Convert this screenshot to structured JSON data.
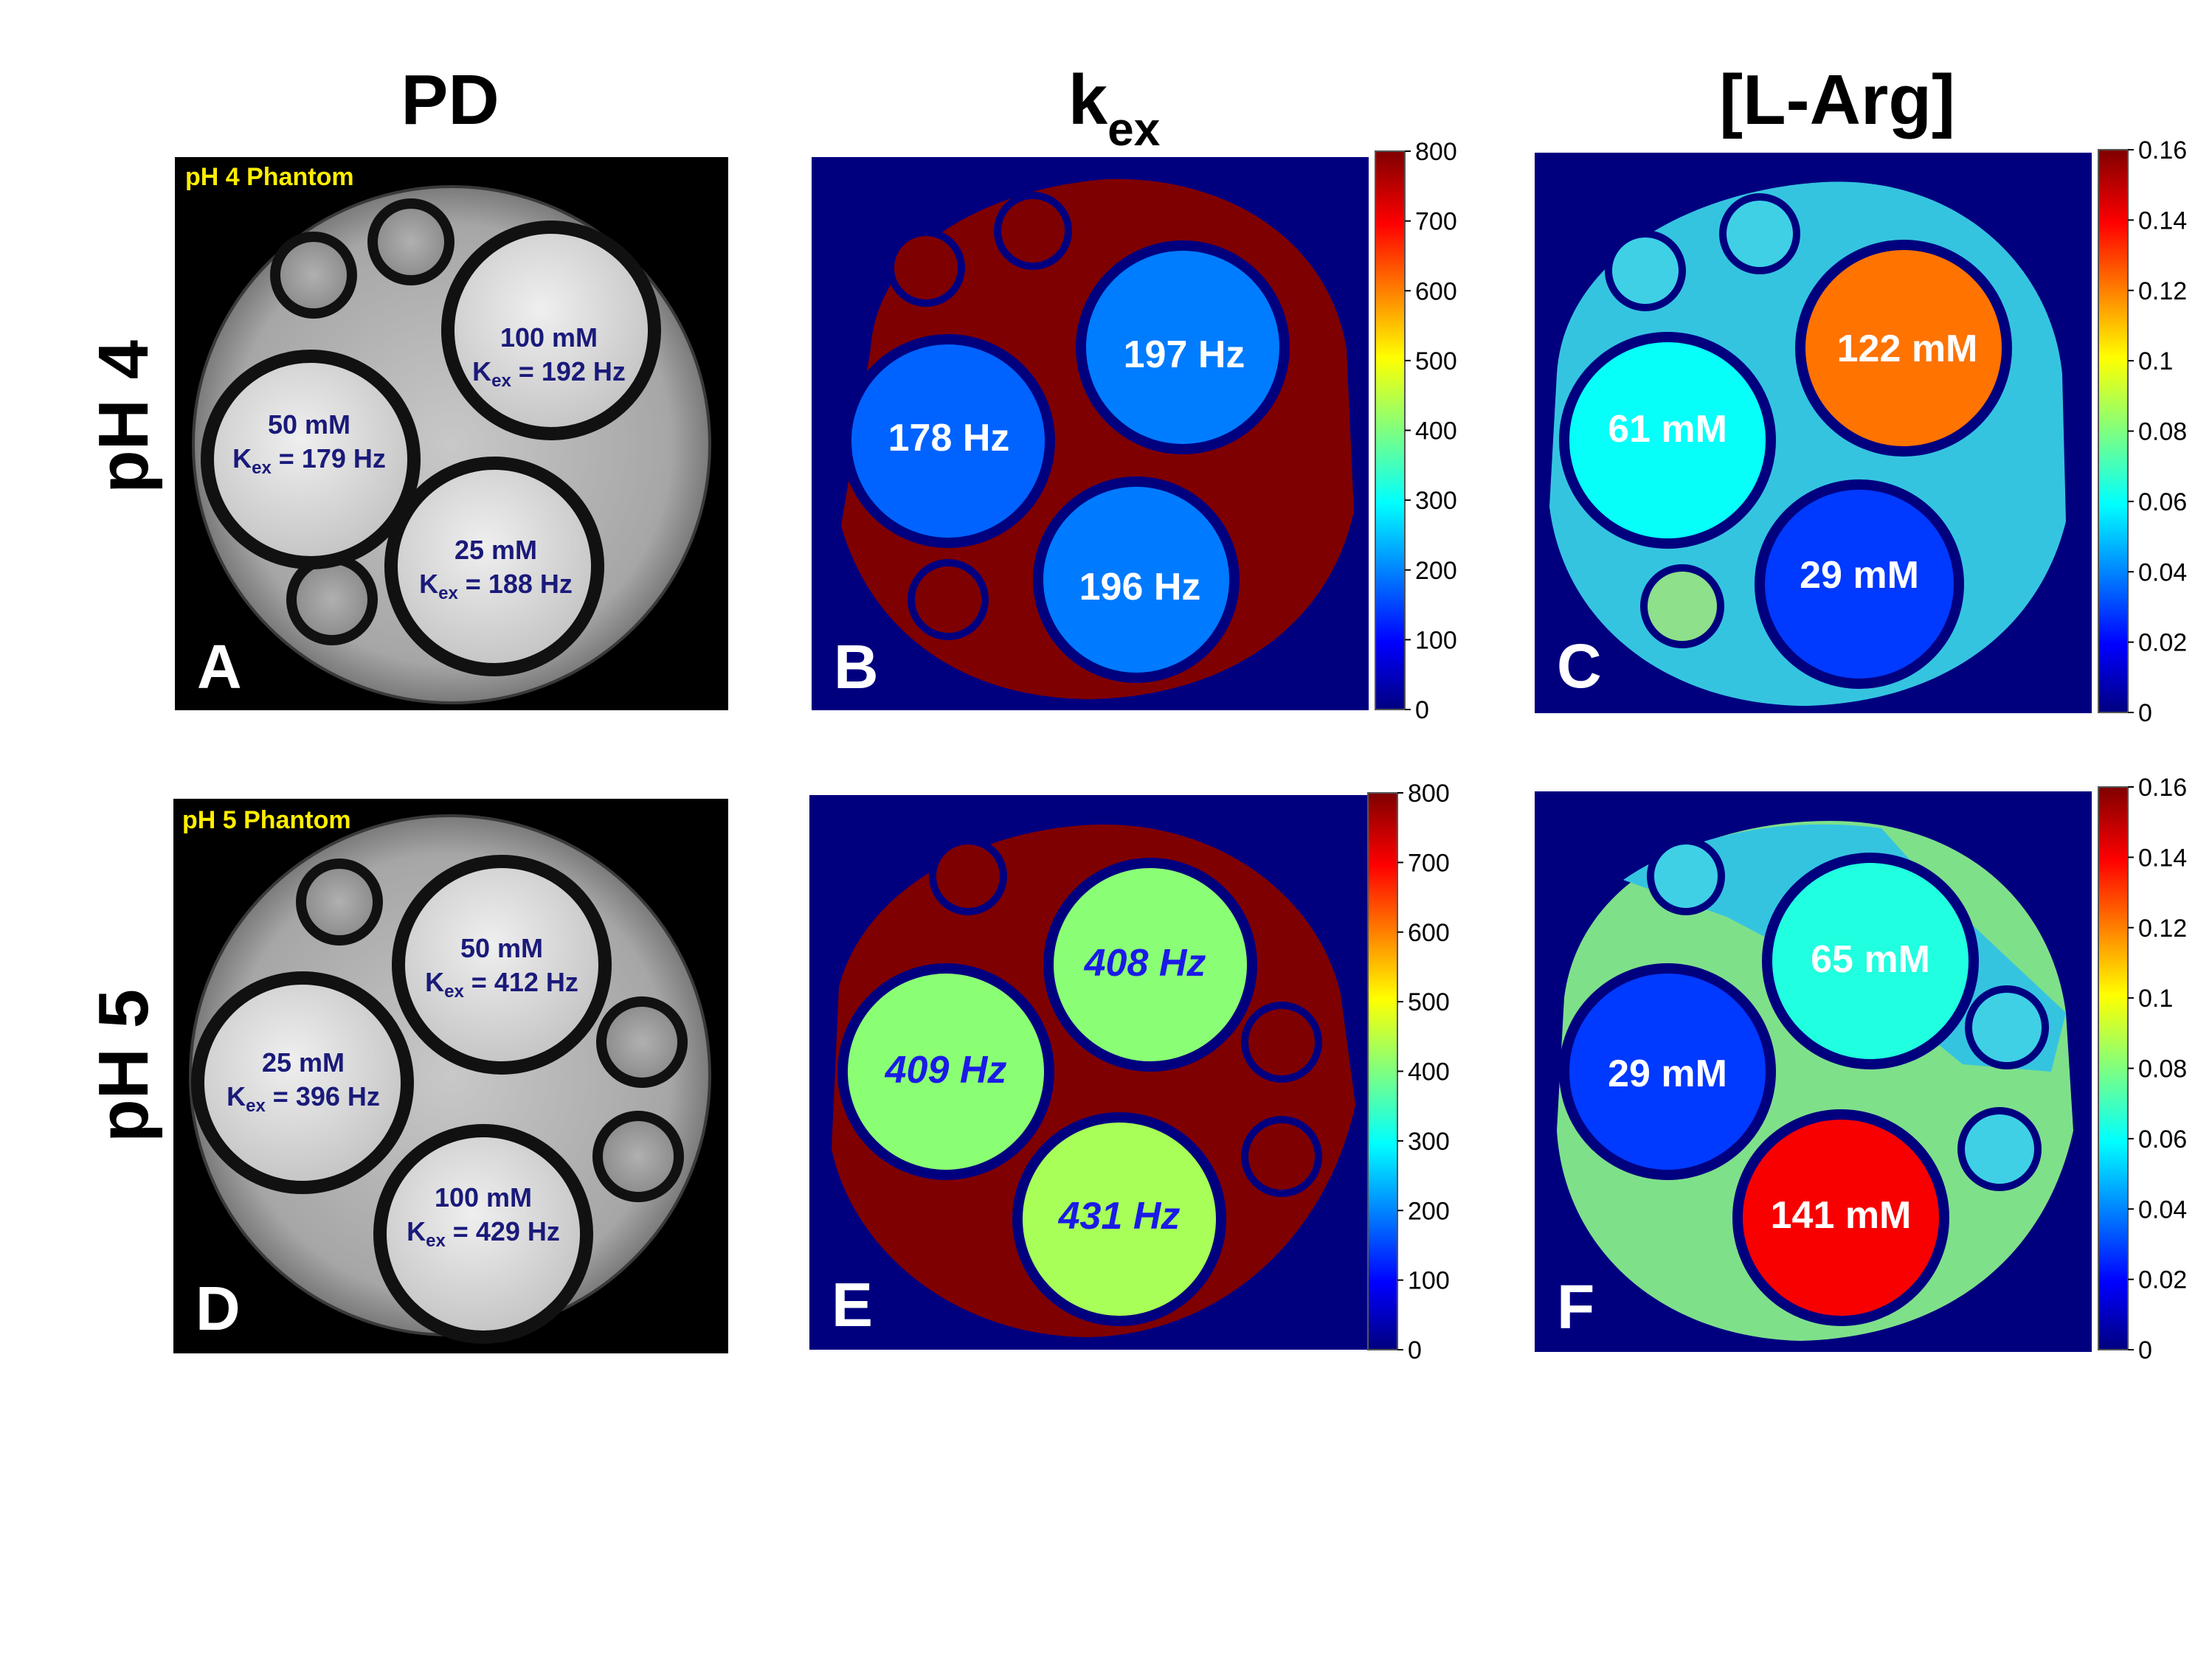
{
  "columns": {
    "pd": "PD",
    "kex_main": "k",
    "kex_sub": "ex",
    "larg": "[L-Arg]"
  },
  "rows": {
    "ph4": "pH 4",
    "ph5": "pH 5"
  },
  "panels": {
    "A": {
      "letter": "A",
      "phantom_label": "pH 4 Phantom",
      "tubes": [
        {
          "conc": "100 mM",
          "k": "K",
          "k_sub": "ex",
          "k_val": " = 192 Hz"
        },
        {
          "conc": "50 mM",
          "k": "K",
          "k_sub": "ex",
          "k_val": " = 179 Hz"
        },
        {
          "conc": "25 mM",
          "k": "K",
          "k_sub": "ex",
          "k_val": " = 188 Hz"
        }
      ]
    },
    "B": {
      "letter": "B",
      "labels": [
        "197 Hz",
        "178 Hz",
        "196 Hz"
      ]
    },
    "C": {
      "letter": "C",
      "labels": [
        "122 mM",
        "61 mM",
        "29 mM"
      ]
    },
    "D": {
      "letter": "D",
      "phantom_label": "pH 5 Phantom",
      "tubes": [
        {
          "conc": "50 mM",
          "k": "K",
          "k_sub": "ex",
          "k_val": " = 412 Hz"
        },
        {
          "conc": "25 mM",
          "k": "K",
          "k_sub": "ex",
          "k_val": " = 396 Hz"
        },
        {
          "conc": "100 mM",
          "k": "K",
          "k_sub": "ex",
          "k_val": " = 429 Hz"
        }
      ]
    },
    "E": {
      "letter": "E",
      "labels": [
        "408 Hz",
        "409 Hz",
        "431 Hz"
      ]
    },
    "F": {
      "letter": "F",
      "labels": [
        "65 mM",
        "29 mM",
        "141 mM"
      ]
    }
  },
  "colorbars": {
    "kex": {
      "ticks": [
        "800",
        "700",
        "600",
        "500",
        "400",
        "300",
        "200",
        "100",
        "0"
      ],
      "min": 0,
      "max": 800
    },
    "larg": {
      "ticks": [
        "0.16",
        "0.14",
        "0.12",
        "0.1",
        "0.08",
        "0.06",
        "0.04",
        "0.02",
        "0"
      ],
      "min": 0,
      "max": 0.16
    }
  },
  "values": {
    "B": [
      197,
      178,
      196
    ],
    "C": [
      0.122,
      0.061,
      0.029
    ],
    "E": [
      408,
      409,
      431
    ],
    "F": [
      0.065,
      0.029,
      0.141
    ]
  },
  "colors": {
    "jet_background": "#00007f",
    "jet_saturated": "#7f0000",
    "phantom_label": "#ffee00",
    "annotation_navy": "#1a1a7a",
    "map_label_white": "#ffffff",
    "map_label_blue": "#1a1ae6"
  }
}
